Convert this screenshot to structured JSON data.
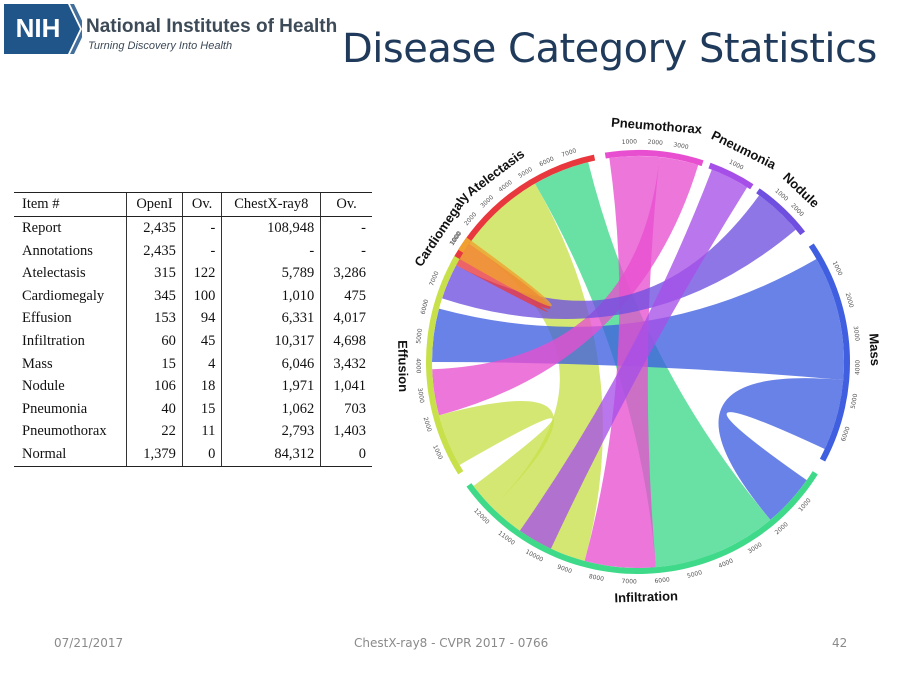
{
  "header": {
    "logo_text": "NIH",
    "org_name": "National Institutes of Health",
    "org_tagline": "Turning Discovery Into Health",
    "logo_color": "#20558a"
  },
  "title": "Disease Category Statistics",
  "table": {
    "columns": [
      "Item #",
      "OpenI",
      "Ov.",
      "ChestX-ray8",
      "Ov."
    ],
    "rows": [
      [
        "Report",
        "2,435",
        "-",
        "108,948",
        "-"
      ],
      [
        "Annotations",
        "2,435",
        "-",
        "-",
        "-"
      ],
      [
        "Atelectasis",
        "315",
        "122",
        "5,789",
        "3,286"
      ],
      [
        "Cardiomegaly",
        "345",
        "100",
        "1,010",
        "475"
      ],
      [
        "Effusion",
        "153",
        "94",
        "6,331",
        "4,017"
      ],
      [
        "Infiltration",
        "60",
        "45",
        "10,317",
        "4,698"
      ],
      [
        "Mass",
        "15",
        "4",
        "6,046",
        "3,432"
      ],
      [
        "Nodule",
        "106",
        "18",
        "1,971",
        "1,041"
      ],
      [
        "Pneumonia",
        "40",
        "15",
        "1,062",
        "703"
      ],
      [
        "Pneumothorax",
        "22",
        "11",
        "2,793",
        "1,403"
      ],
      [
        "Normal",
        "1,379",
        "0",
        "84,312",
        "0"
      ]
    ]
  },
  "chord": {
    "segments": [
      {
        "name": "Atelectasis",
        "color": "#e8383d",
        "ticks": [
          "1000",
          "2000",
          "3000",
          "4000",
          "5000",
          "6000",
          "7000"
        ]
      },
      {
        "name": "Pneumothorax",
        "color": "#e84fd0",
        "ticks": [
          "1000",
          "2000",
          "3000"
        ]
      },
      {
        "name": "Pneumonia",
        "color": "#a64fe8",
        "ticks": [
          "1000"
        ]
      },
      {
        "name": "Nodule",
        "color": "#6e4fe0",
        "ticks": [
          "1000",
          "2000"
        ]
      },
      {
        "name": "Mass",
        "color": "#3f5fe0",
        "ticks": [
          "1000",
          "2000",
          "3000",
          "4000",
          "5000",
          "6000"
        ]
      },
      {
        "name": "Infiltration",
        "color": "#3fd98a",
        "ticks": [
          "1000",
          "2000",
          "3000",
          "4000",
          "5000",
          "6000",
          "7000",
          "8000",
          "9000",
          "10000",
          "11000",
          "12000"
        ]
      },
      {
        "name": "Effusion",
        "color": "#c8e04a",
        "ticks": [
          "1000",
          "2000",
          "3000",
          "4000",
          "5000",
          "6000",
          "7000"
        ]
      },
      {
        "name": "Cardiomegaly",
        "color": "#f0a030",
        "ticks": [
          "1000"
        ]
      }
    ]
  },
  "footer": {
    "date": "07/21/2017",
    "center": "ChestX-ray8 - CVPR 2017 - 0766",
    "page": "42"
  }
}
